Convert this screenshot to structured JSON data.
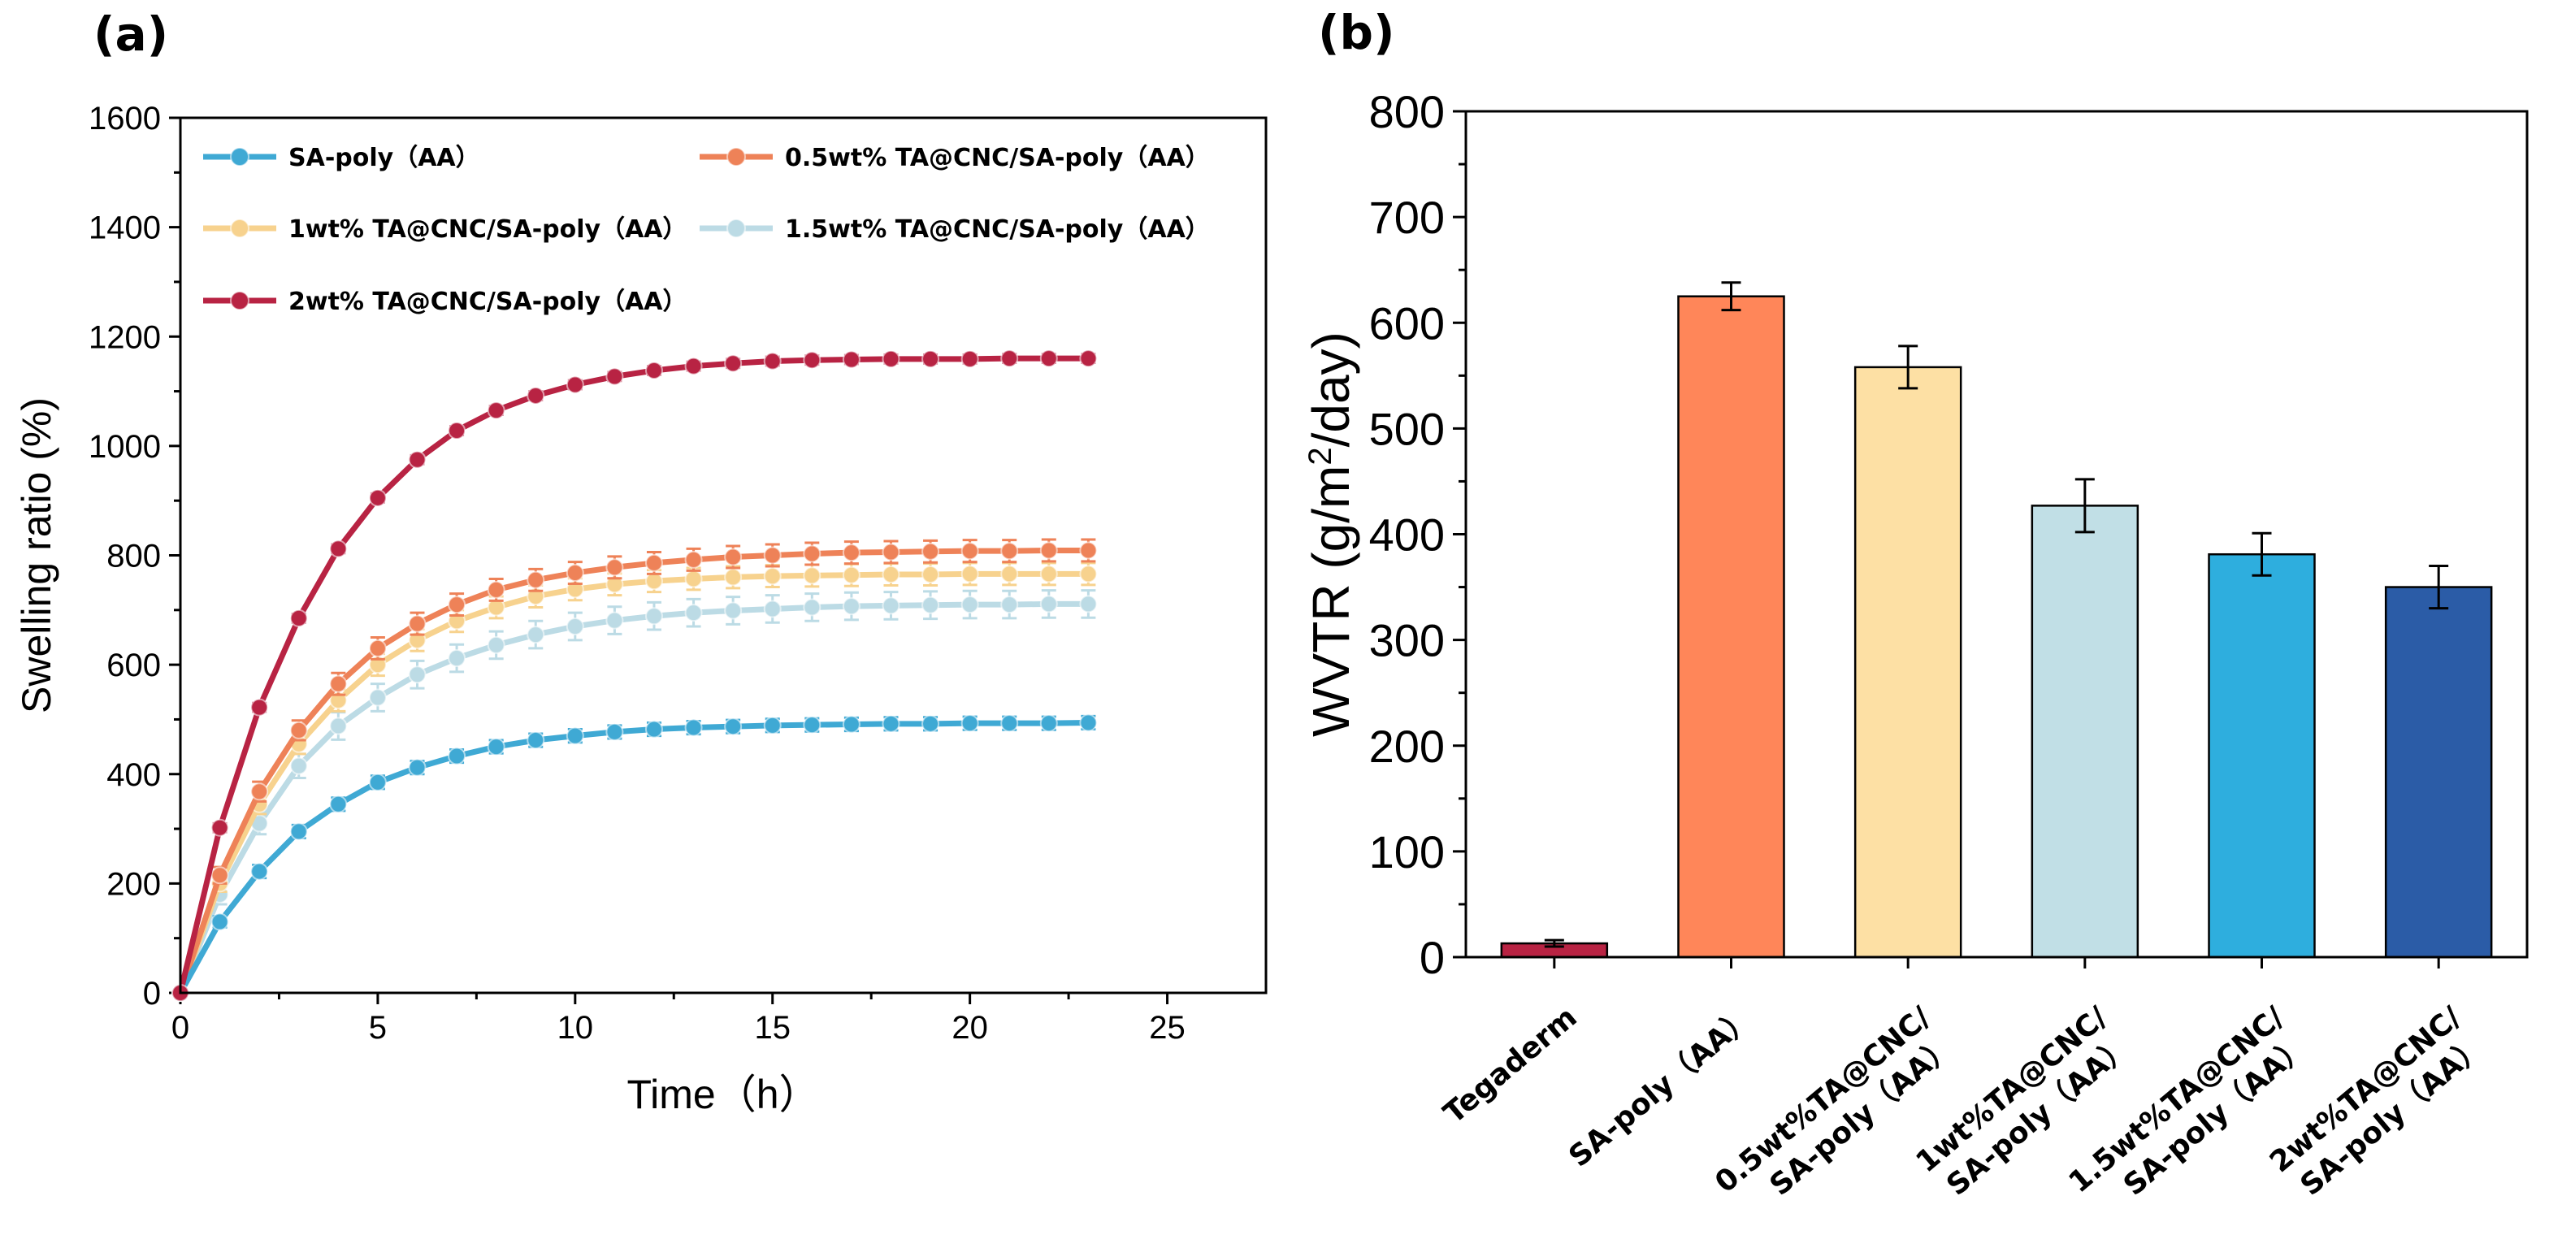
{
  "chart_data": [
    {
      "type": "line",
      "panel": "(a)",
      "xlabel": "Time（h）",
      "ylabel": "Swelling ratio (%)",
      "xlim": [
        0,
        27.5
      ],
      "ylim": [
        0,
        1600
      ],
      "xticks": [
        0,
        5,
        10,
        15,
        20,
        25
      ],
      "yticks": [
        0,
        200,
        400,
        600,
        800,
        1000,
        1200,
        1400,
        1600
      ],
      "legend_position": "top-left",
      "grid": false,
      "x": [
        0,
        1,
        2,
        3,
        4,
        5,
        6,
        7,
        8,
        9,
        10,
        11,
        12,
        13,
        14,
        15,
        16,
        17,
        18,
        19,
        20,
        21,
        22,
        23
      ],
      "series": [
        {
          "name": "SA-poly（AA）",
          "color": "#3fa9d4",
          "values": [
            0,
            130,
            222,
            295,
            345,
            385,
            412,
            433,
            450,
            462,
            470,
            477,
            482,
            485,
            487,
            489,
            490,
            491,
            492,
            492,
            493,
            493,
            493,
            494
          ],
          "error": [
            0,
            10,
            12,
            12,
            12,
            12,
            12,
            12,
            12,
            12,
            12,
            12,
            12,
            12,
            12,
            12,
            12,
            12,
            12,
            12,
            12,
            12,
            12,
            12
          ]
        },
        {
          "name": "0.5wt% TA@CNC/SA-poly（AA）",
          "color": "#ee8258",
          "values": [
            0,
            215,
            368,
            480,
            565,
            630,
            675,
            710,
            737,
            755,
            768,
            778,
            786,
            792,
            797,
            800,
            803,
            805,
            806,
            807,
            808,
            808,
            809,
            809
          ],
          "error": [
            0,
            15,
            18,
            18,
            20,
            20,
            20,
            20,
            20,
            20,
            20,
            20,
            20,
            20,
            20,
            20,
            20,
            20,
            20,
            20,
            20,
            20,
            20,
            20
          ]
        },
        {
          "name": "1wt% TA@CNC/SA-poly（AA）",
          "color": "#f7d28e",
          "values": [
            0,
            200,
            345,
            455,
            535,
            600,
            645,
            680,
            705,
            725,
            738,
            747,
            753,
            757,
            760,
            762,
            763,
            764,
            765,
            765,
            766,
            766,
            766,
            766
          ],
          "error": [
            0,
            15,
            18,
            18,
            20,
            20,
            20,
            20,
            20,
            20,
            20,
            20,
            20,
            20,
            20,
            20,
            20,
            20,
            20,
            20,
            20,
            20,
            20,
            20
          ]
        },
        {
          "name": "1.5wt% TA@CNC/SA-poly（AA）",
          "color": "#bcdbe5",
          "values": [
            0,
            180,
            310,
            415,
            488,
            540,
            582,
            612,
            636,
            655,
            670,
            681,
            689,
            695,
            699,
            702,
            705,
            707,
            708,
            709,
            710,
            710,
            711,
            711
          ],
          "error": [
            0,
            18,
            20,
            22,
            25,
            25,
            25,
            25,
            25,
            25,
            25,
            25,
            25,
            25,
            25,
            25,
            25,
            25,
            25,
            25,
            25,
            25,
            25,
            25
          ]
        },
        {
          "name": "2wt% TA@CNC/SA-poly（AA）",
          "color": "#b82343",
          "values": [
            0,
            302,
            522,
            685,
            812,
            905,
            975,
            1028,
            1065,
            1092,
            1112,
            1127,
            1138,
            1146,
            1151,
            1155,
            1157,
            1158,
            1159,
            1159,
            1159,
            1160,
            1160,
            1160
          ],
          "error": [
            0,
            8,
            8,
            8,
            8,
            8,
            8,
            8,
            8,
            8,
            8,
            8,
            8,
            8,
            8,
            8,
            8,
            8,
            8,
            8,
            8,
            8,
            8,
            8
          ]
        }
      ]
    },
    {
      "type": "bar",
      "panel": "(b)",
      "ylabel_parts": [
        "WVTR (g/m",
        "2",
        "/day)"
      ],
      "ylim": [
        0,
        800
      ],
      "yticks": [
        0,
        100,
        200,
        300,
        400,
        500,
        600,
        700,
        800
      ],
      "grid": false,
      "categories": [
        [
          "Tegaderm"
        ],
        [
          "SA-poly（AA）"
        ],
        [
          "0.5wt%TA@CNC/",
          "SA-poly（AA）"
        ],
        [
          "1wt%TA@CNC/",
          "SA-poly（AA）"
        ],
        [
          "1.5wt%TA@CNC/",
          "SA-poly（AA）"
        ],
        [
          "2wt%TA@CNC/",
          "SA-poly（AA）"
        ]
      ],
      "values": [
        13,
        625,
        558,
        427,
        381,
        350
      ],
      "errors": [
        3,
        13,
        20,
        25,
        20,
        20
      ],
      "colors": [
        "#b82343",
        "#ff8659",
        "#fde0a4",
        "#c1dfe6",
        "#2eaede",
        "#2b5ca7"
      ]
    }
  ]
}
